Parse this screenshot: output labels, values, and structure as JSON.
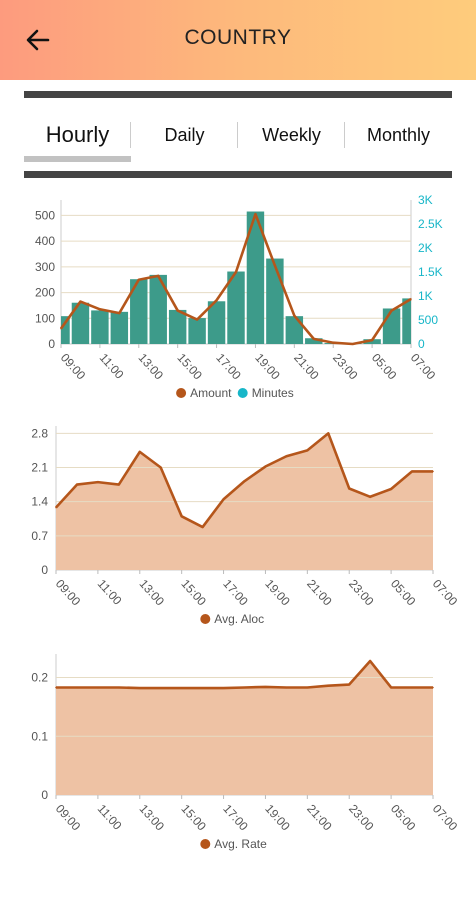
{
  "header": {
    "title": "COUNTRY"
  },
  "tabs": [
    {
      "label": "Hourly",
      "active": true
    },
    {
      "label": "Daily",
      "active": false
    },
    {
      "label": "Weekly",
      "active": false
    },
    {
      "label": "Monthly",
      "active": false
    }
  ],
  "colors": {
    "amount": "#b5561b",
    "minutes": "#17b6c8",
    "bar": "#3d9b8a",
    "area": "#eec2a4",
    "grid": "#e6dcc4"
  },
  "chart_data": [
    {
      "type": "bar",
      "x_ticks": [
        "09:00",
        "11:00",
        "13:00",
        "15:00",
        "17:00",
        "19:00",
        "21:00",
        "23:00",
        "05:00",
        "07:00"
      ],
      "y_left_ticks": [
        "0",
        "100",
        "200",
        "300",
        "400",
        "500"
      ],
      "y_right_ticks": [
        "0",
        "500",
        "1K",
        "1.5K",
        "2K",
        "2.5K",
        "3K"
      ],
      "ylim_left": [
        0,
        560
      ],
      "ylim_right": [
        0,
        3000
      ],
      "series": [
        {
          "name": "Amount",
          "type": "line",
          "axis": "left",
          "values": [
            60,
            165,
            135,
            120,
            250,
            265,
            130,
            95,
            170,
            280,
            505,
            305,
            110,
            20,
            5,
            0,
            15,
            130,
            175
          ]
        },
        {
          "name": "Minutes",
          "type": "bar",
          "axis": "right",
          "values": [
            580,
            860,
            700,
            670,
            1350,
            1440,
            710,
            540,
            890,
            1510,
            2760,
            1780,
            580,
            120,
            20,
            10,
            100,
            740,
            950
          ]
        }
      ],
      "legend": "bottom"
    },
    {
      "type": "area",
      "x_ticks": [
        "09:00",
        "11:00",
        "13:00",
        "15:00",
        "17:00",
        "19:00",
        "21:00",
        "23:00",
        "05:00",
        "07:00"
      ],
      "y_ticks": [
        "0",
        "0.7",
        "1.4",
        "2.1",
        "2.8"
      ],
      "ylim": [
        0,
        2.95
      ],
      "series": [
        {
          "name": "Avg. Aloc",
          "values": [
            1.28,
            1.75,
            1.8,
            1.75,
            2.42,
            2.1,
            1.1,
            0.88,
            1.45,
            1.82,
            2.12,
            2.33,
            2.45,
            2.8,
            1.67,
            1.5,
            1.66,
            2.02,
            2.02
          ]
        }
      ],
      "legend": "bottom"
    },
    {
      "type": "area",
      "x_ticks": [
        "09:00",
        "11:00",
        "13:00",
        "15:00",
        "17:00",
        "19:00",
        "21:00",
        "23:00",
        "05:00",
        "07:00"
      ],
      "y_ticks": [
        "0",
        "0.1",
        "0.2"
      ],
      "ylim": [
        0,
        0.24
      ],
      "series": [
        {
          "name": "Avg. Rate",
          "values": [
            0.183,
            0.183,
            0.183,
            0.183,
            0.182,
            0.182,
            0.182,
            0.182,
            0.182,
            0.183,
            0.184,
            0.183,
            0.183,
            0.186,
            0.188,
            0.228,
            0.183,
            0.183,
            0.183
          ]
        }
      ],
      "legend": "bottom"
    }
  ]
}
